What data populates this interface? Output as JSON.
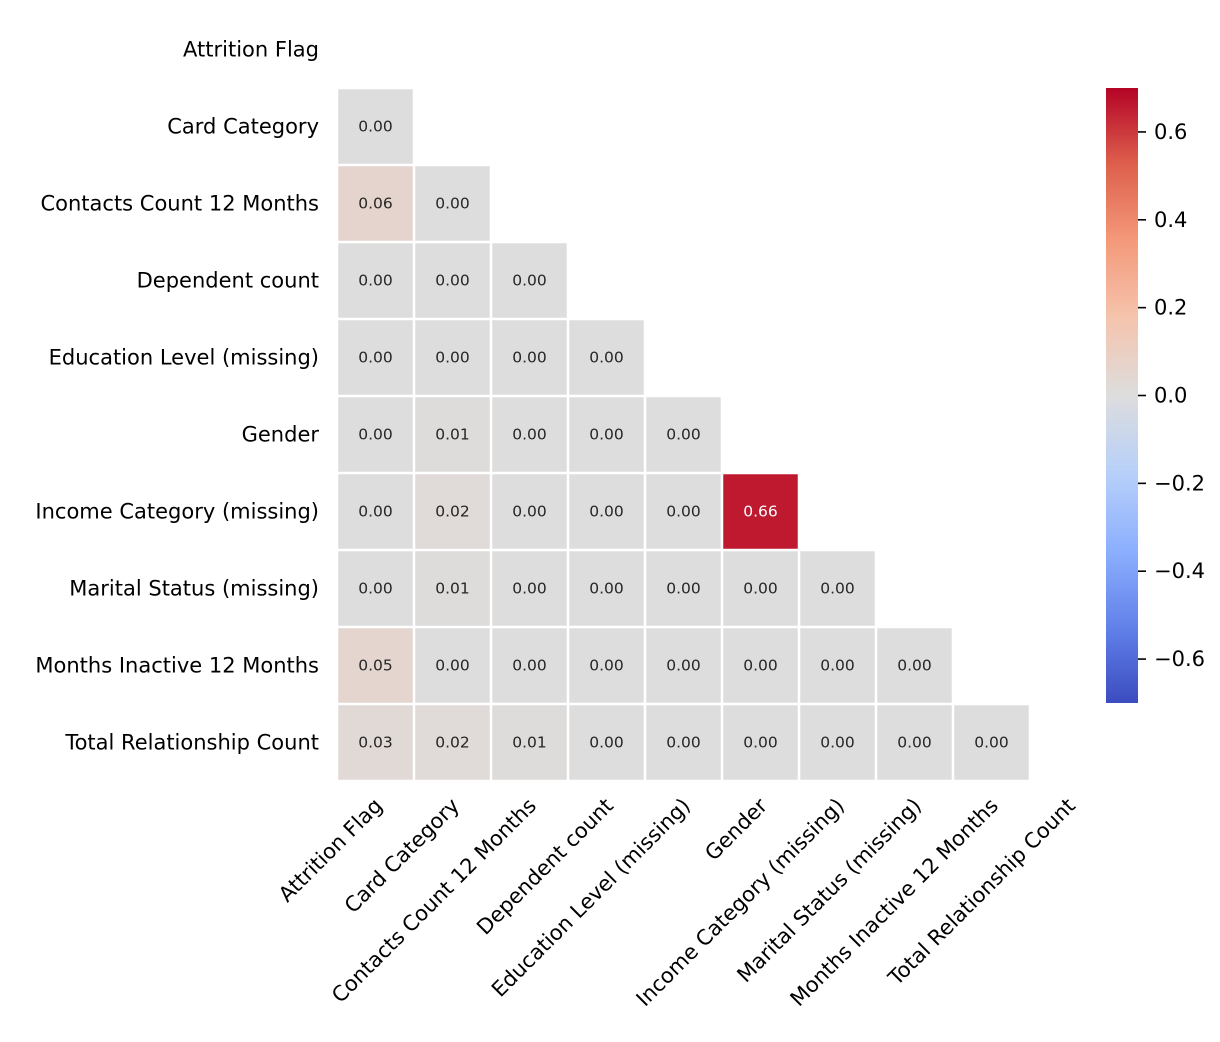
{
  "chart_data": {
    "type": "heatmap",
    "title": "",
    "xlabel": "",
    "ylabel": "",
    "mask": "lower-triangle",
    "colormap": "coolwarm",
    "vmin": -0.7,
    "vmax": 0.7,
    "colorbar_ticks": [
      0.6,
      0.4,
      0.2,
      0.0,
      -0.2,
      -0.4,
      -0.6
    ],
    "colorbar_tick_labels": [
      "0.6",
      "0.4",
      "0.2",
      "0.0",
      "−0.2",
      "−0.4",
      "−0.6"
    ],
    "row_labels": [
      "Attrition Flag",
      "Card Category",
      "Contacts Count 12 Months",
      "Dependent count",
      "Education Level (missing)",
      "Gender",
      "Income Category (missing)",
      "Marital Status (missing)",
      "Months Inactive 12 Months",
      "Total Relationship Count"
    ],
    "col_labels": [
      "Attrition Flag",
      "Card Category",
      "Contacts Count 12 Months",
      "Dependent count",
      "Education Level (missing)",
      "Gender",
      "Income Category (missing)",
      "Marital Status (missing)",
      "Months Inactive 12 Months",
      "Total Relationship Count"
    ],
    "values": [
      [],
      [
        0.0
      ],
      [
        0.06,
        0.0
      ],
      [
        0.0,
        0.0,
        0.0
      ],
      [
        0.0,
        0.0,
        0.0,
        0.0
      ],
      [
        0.0,
        0.01,
        0.0,
        0.0,
        0.0
      ],
      [
        0.0,
        0.02,
        0.0,
        0.0,
        0.0,
        0.66
      ],
      [
        0.0,
        0.01,
        0.0,
        0.0,
        0.0,
        0.0,
        0.0
      ],
      [
        0.05,
        0.0,
        0.0,
        0.0,
        0.0,
        0.0,
        0.0,
        0.0
      ],
      [
        0.03,
        0.02,
        0.01,
        0.0,
        0.0,
        0.0,
        0.0,
        0.0,
        0.0
      ]
    ],
    "annotation_format": "0.00"
  }
}
